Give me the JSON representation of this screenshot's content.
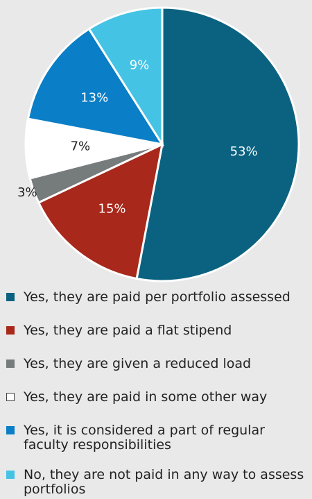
{
  "chart_data": {
    "type": "pie",
    "categories": [
      "Yes, they are paid per portfolio assessed",
      "Yes, they are paid a flat stipend",
      "Yes, they are given a reduced load",
      "Yes, they are paid in some other way",
      "Yes, it is considered a part of regular faculty responsibilities",
      "No, they are not paid in any way to assess portfolios"
    ],
    "values": [
      53,
      15,
      3,
      7,
      13,
      9
    ],
    "value_labels": [
      "53%",
      "15%",
      "3%",
      "7%",
      "13%",
      "9%"
    ],
    "colors": [
      "#0b6280",
      "#a8281b",
      "#767b7c",
      "#ffffff",
      "#0a7ec6",
      "#45c3e5"
    ]
  }
}
